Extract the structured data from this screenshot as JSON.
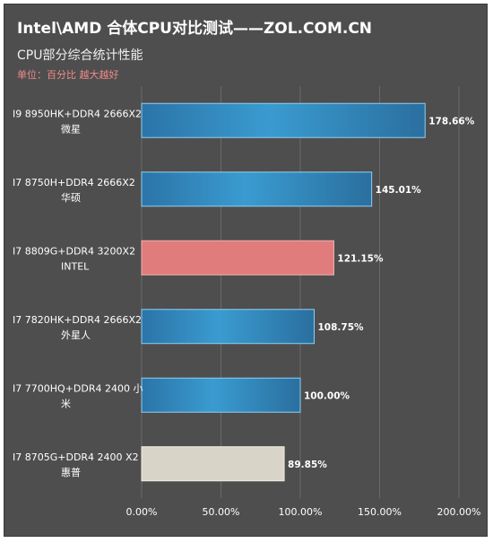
{
  "chart_data": {
    "type": "bar",
    "orientation": "horizontal",
    "title": "Intel\\AMD 合体CPU对比测试——ZOL.COM.CN",
    "subtitle": "CPU部分综合统计性能",
    "note": "单位：百分比 越大越好",
    "categories": [
      [
        "I9 8950HK+DDR4 2666X2",
        "微星"
      ],
      [
        "I7 8750H+DDR4 2666X2",
        "华硕"
      ],
      [
        "I7 8809G+DDR4 3200X2",
        "INTEL"
      ],
      [
        "I7 7820HK+DDR4 2666X2",
        "外星人"
      ],
      [
        "I7 7700HQ+DDR4 2400 小",
        "米"
      ],
      [
        "I7 8705G+DDR4 2400 X2",
        "惠普"
      ]
    ],
    "values": [
      178.66,
      145.01,
      121.15,
      108.75,
      100.0,
      89.85
    ],
    "value_labels": [
      "178.66%",
      "145.01%",
      "121.15%",
      "108.75%",
      "100.00%",
      "89.85%"
    ],
    "bar_colors": [
      "blue",
      "blue",
      "#e07c7c",
      "blue",
      "blue",
      "#d9d4c8"
    ],
    "xlim": [
      0,
      200
    ],
    "xticks": [
      "0.00%",
      "50.00%",
      "100.00%",
      "150.00%",
      "200.00%"
    ],
    "grid": true,
    "background": "#4e4e4e"
  }
}
